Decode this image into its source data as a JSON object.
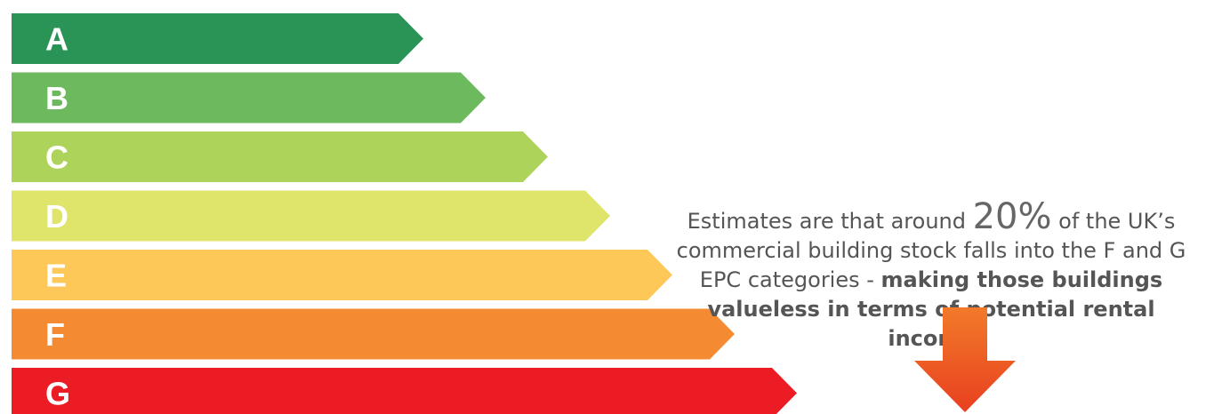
{
  "bands": [
    {
      "letter": "A",
      "color": "#2a9457",
      "level": 1
    },
    {
      "letter": "B",
      "color": "#6cb95e",
      "level": 2
    },
    {
      "letter": "C",
      "color": "#aed35a",
      "level": 3
    },
    {
      "letter": "D",
      "color": "#dfe46a",
      "level": 4
    },
    {
      "letter": "E",
      "color": "#fdc858",
      "level": 5
    },
    {
      "letter": "F",
      "color": "#f48b33",
      "level": 6
    },
    {
      "letter": "G",
      "color": "#ec1c24",
      "level": 7
    }
  ],
  "callout": {
    "before_pct": "Estimates are that around ",
    "pct": "20%",
    "after_pct": " of the UK’s commercial building stock falls into the F and G EPC categories - ",
    "emphasis": "making those buildings valueless in terms of potential rental income"
  },
  "arrow": {
    "icon": "down-arrow-icon",
    "color_top": "#f27a2a",
    "color_bottom": "#e8401f"
  }
}
